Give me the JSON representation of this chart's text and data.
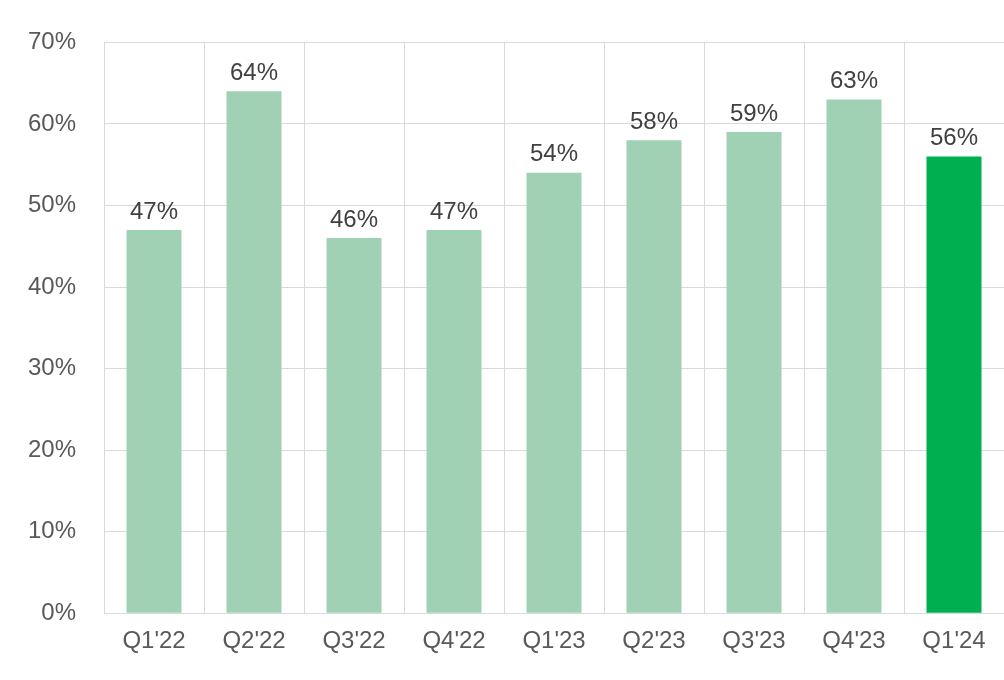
{
  "chart_data": {
    "type": "bar",
    "categories": [
      "Q1'22",
      "Q2'22",
      "Q3'22",
      "Q4'22",
      "Q1'23",
      "Q2'23",
      "Q3'23",
      "Q4'23",
      "Q1'24"
    ],
    "values": [
      47,
      64,
      46,
      47,
      54,
      58,
      59,
      63,
      56
    ],
    "colors": [
      "#a0d1b4",
      "#a0d1b4",
      "#a0d1b4",
      "#a0d1b4",
      "#a0d1b4",
      "#a0d1b4",
      "#a0d1b4",
      "#a0d1b4",
      "#00b050"
    ],
    "ylim": [
      0,
      70
    ],
    "yticks": [
      {
        "value": 0,
        "label": "0%"
      },
      {
        "value": 10,
        "label": "10%"
      },
      {
        "value": 20,
        "label": "20%"
      },
      {
        "value": 30,
        "label": "30%"
      },
      {
        "value": 40,
        "label": "40%"
      },
      {
        "value": 50,
        "label": "50%"
      },
      {
        "value": 60,
        "label": "60%"
      },
      {
        "value": 70,
        "label": "70%"
      }
    ],
    "value_labels": [
      "47%",
      "64%",
      "46%",
      "47%",
      "54%",
      "58%",
      "59%",
      "63%",
      "56%"
    ],
    "grid": true
  }
}
